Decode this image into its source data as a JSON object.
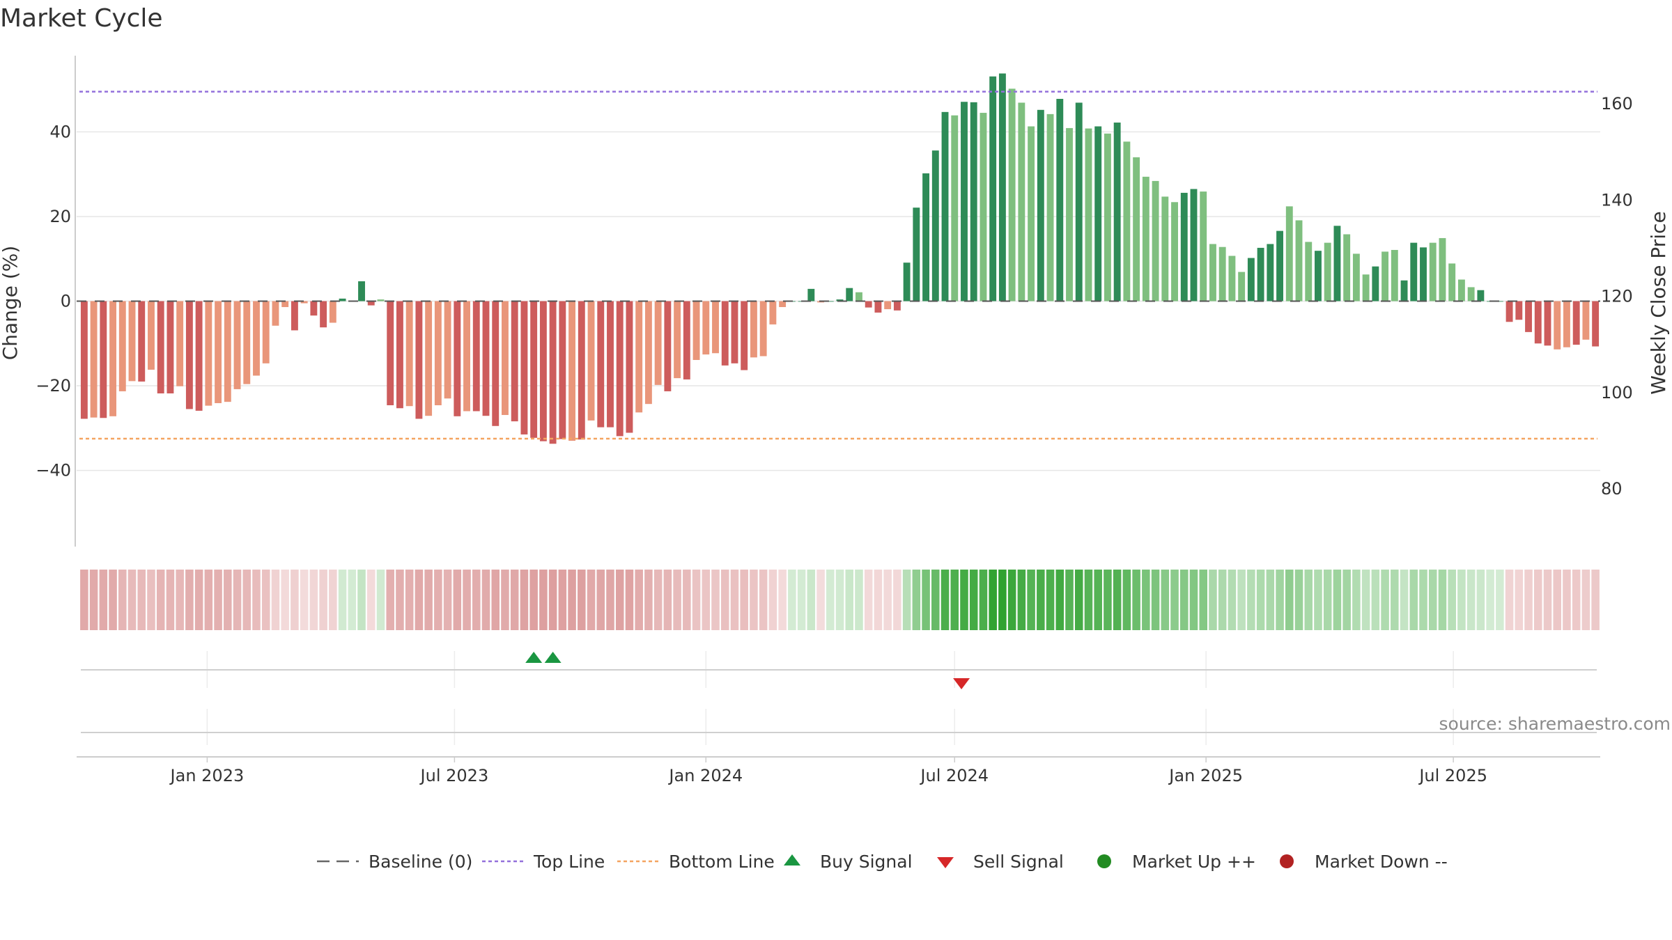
{
  "title": "Market Cycle",
  "source": "source: sharemaestro.com",
  "colors": {
    "pos_dark": "#2e8b57",
    "pos_light": "#7fbf7f",
    "neg_dark": "#cd5c5c",
    "neg_light": "#e9967a",
    "top_line": "#9370db",
    "bottom_line": "#f4a460",
    "baseline": "#555555",
    "buy": "#1a9641",
    "sell": "#d62728",
    "market_up": "#228b22",
    "market_down": "#b22222"
  },
  "chart_data": {
    "type": "bar",
    "title": "Market Cycle",
    "ylabel": "Change (%)",
    "y2label": "Weekly Close Price",
    "ylim": [
      -58,
      58
    ],
    "y2lim": [
      68,
      170
    ],
    "yticks": [
      "40",
      "20",
      "0",
      "−20",
      "−40"
    ],
    "yticks_values": [
      40,
      20,
      0,
      -20,
      -40
    ],
    "y2ticks": [
      "160",
      "140",
      "120",
      "100",
      "80"
    ],
    "y2ticks_values": [
      160,
      140,
      120,
      100,
      80
    ],
    "top_line": 49.5,
    "bottom_line": -32.5,
    "x_start": "2022-10-03",
    "x_ticks": [
      {
        "date": "2023-01-01",
        "label": "Jan 2023"
      },
      {
        "date": "2023-07-01",
        "label": "Jul 2023"
      },
      {
        "date": "2024-01-01",
        "label": "Jan 2024"
      },
      {
        "date": "2024-07-01",
        "label": "Jul 2024"
      },
      {
        "date": "2025-01-01",
        "label": "Jan 2025"
      },
      {
        "date": "2025-07-01",
        "label": "Jul 2025"
      }
    ],
    "values": [
      -27.8,
      -27.5,
      -27.6,
      -27.2,
      -21.3,
      -18.9,
      -19.0,
      -16.2,
      -21.8,
      -21.8,
      -20.1,
      -25.5,
      -25.9,
      -24.7,
      -24.1,
      -23.8,
      -20.8,
      -19.6,
      -17.6,
      -14.7,
      -5.8,
      -1.4,
      -6.9,
      -0.5,
      -3.4,
      -6.2,
      -5.1,
      0.6,
      0.0,
      4.7,
      -1.0,
      0.4,
      -24.6,
      -25.3,
      -24.8,
      -27.8,
      -27.1,
      -24.6,
      -23.0,
      -27.2,
      -26.0,
      -26.0,
      -27.1,
      -29.5,
      -26.9,
      -28.4,
      -31.5,
      -32.3,
      -33.1,
      -33.7,
      -32.6,
      -33.0,
      -32.7,
      -28.2,
      -29.8,
      -29.8,
      -31.9,
      -31.1,
      -26.3,
      -24.3,
      -19.8,
      -21.3,
      -18.2,
      -18.5,
      -13.9,
      -12.6,
      -12.3,
      -15.2,
      -14.7,
      -16.3,
      -13.3,
      -13.0,
      -5.5,
      -1.4,
      0.0,
      0.0,
      2.9,
      -0.3,
      0.0,
      0.4,
      3.1,
      2.1,
      -1.5,
      -2.7,
      -1.9,
      -2.2,
      9.1,
      22.1,
      30.2,
      35.6,
      44.7,
      43.9,
      47.1,
      47.0,
      44.5,
      53.1,
      53.8,
      50.2,
      46.9,
      41.3,
      45.2,
      44.2,
      47.8,
      40.9,
      46.9,
      40.8,
      41.3,
      39.6,
      42.2,
      37.7,
      34.0,
      29.4,
      28.4,
      24.7,
      23.4,
      25.6,
      26.5,
      25.9,
      13.5,
      12.8,
      10.7,
      6.9,
      10.2,
      12.6,
      13.5,
      16.6,
      22.4,
      19.1,
      14.0,
      11.9,
      13.8,
      17.8,
      15.8,
      11.2,
      6.3,
      8.2,
      11.7,
      12.1,
      4.9,
      13.8,
      12.7,
      13.8,
      14.9,
      8.9,
      5.1,
      3.3,
      2.6,
      0.0,
      0.0,
      -4.9,
      -4.4,
      -7.3,
      -10.0,
      -10.5,
      -11.4,
      -10.9,
      -10.3,
      -9.1,
      -10.7
    ],
    "shades": [
      "dark",
      "light",
      "dark",
      "light",
      "light",
      "light",
      "dark",
      "light",
      "dark",
      "dark",
      "light",
      "dark",
      "dark",
      "light",
      "light",
      "light",
      "light",
      "light",
      "light",
      "light",
      "light",
      "light",
      "dark",
      "light",
      "dark",
      "dark",
      "light",
      "dark",
      "dark",
      "dark",
      "dark",
      "light",
      "dark",
      "dark",
      "light",
      "dark",
      "light",
      "light",
      "light",
      "dark",
      "light",
      "dark",
      "dark",
      "dark",
      "light",
      "dark",
      "dark",
      "dark",
      "dark",
      "dark",
      "dark",
      "light",
      "dark",
      "light",
      "dark",
      "dark",
      "dark",
      "dark",
      "light",
      "light",
      "light",
      "dark",
      "light",
      "dark",
      "light",
      "light",
      "light",
      "dark",
      "dark",
      "dark",
      "light",
      "light",
      "light",
      "light",
      "dark",
      "dark",
      "dark",
      "light",
      "dark",
      "dark",
      "dark",
      "light",
      "dark",
      "dark",
      "light",
      "dark",
      "dark",
      "dark",
      "dark",
      "dark",
      "dark",
      "light",
      "dark",
      "dark",
      "light",
      "dark",
      "dark",
      "light",
      "light",
      "light",
      "dark",
      "light",
      "dark",
      "light",
      "dark",
      "light",
      "dark",
      "light",
      "dark",
      "light",
      "light",
      "light",
      "light",
      "light",
      "light",
      "dark",
      "dark",
      "light",
      "light",
      "light",
      "light",
      "light",
      "dark",
      "dark",
      "dark",
      "dark",
      "light",
      "light",
      "light",
      "dark",
      "light",
      "dark",
      "light",
      "light",
      "light",
      "dark",
      "light",
      "light",
      "dark",
      "dark",
      "dark",
      "light",
      "light",
      "light",
      "light",
      "light",
      "dark",
      "dark",
      "dark",
      "dark",
      "dark",
      "dark",
      "dark",
      "dark",
      "light",
      "light",
      "dark",
      "light",
      "dark"
    ],
    "signals": [
      {
        "type": "buy",
        "date": "2023-08-28"
      },
      {
        "type": "buy",
        "date": "2023-09-11"
      },
      {
        "type": "sell",
        "date": "2024-07-06"
      }
    ],
    "legend": [
      {
        "key": "baseline",
        "label": "Baseline (0)"
      },
      {
        "key": "top",
        "label": "Top Line"
      },
      {
        "key": "bottom",
        "label": "Bottom Line"
      },
      {
        "key": "buy",
        "label": "Buy Signal"
      },
      {
        "key": "sell",
        "label": "Sell Signal"
      },
      {
        "key": "up",
        "label": "Market Up ++"
      },
      {
        "key": "down",
        "label": "Market Down --"
      }
    ],
    "grid": true,
    "legend_position": "bottom"
  }
}
